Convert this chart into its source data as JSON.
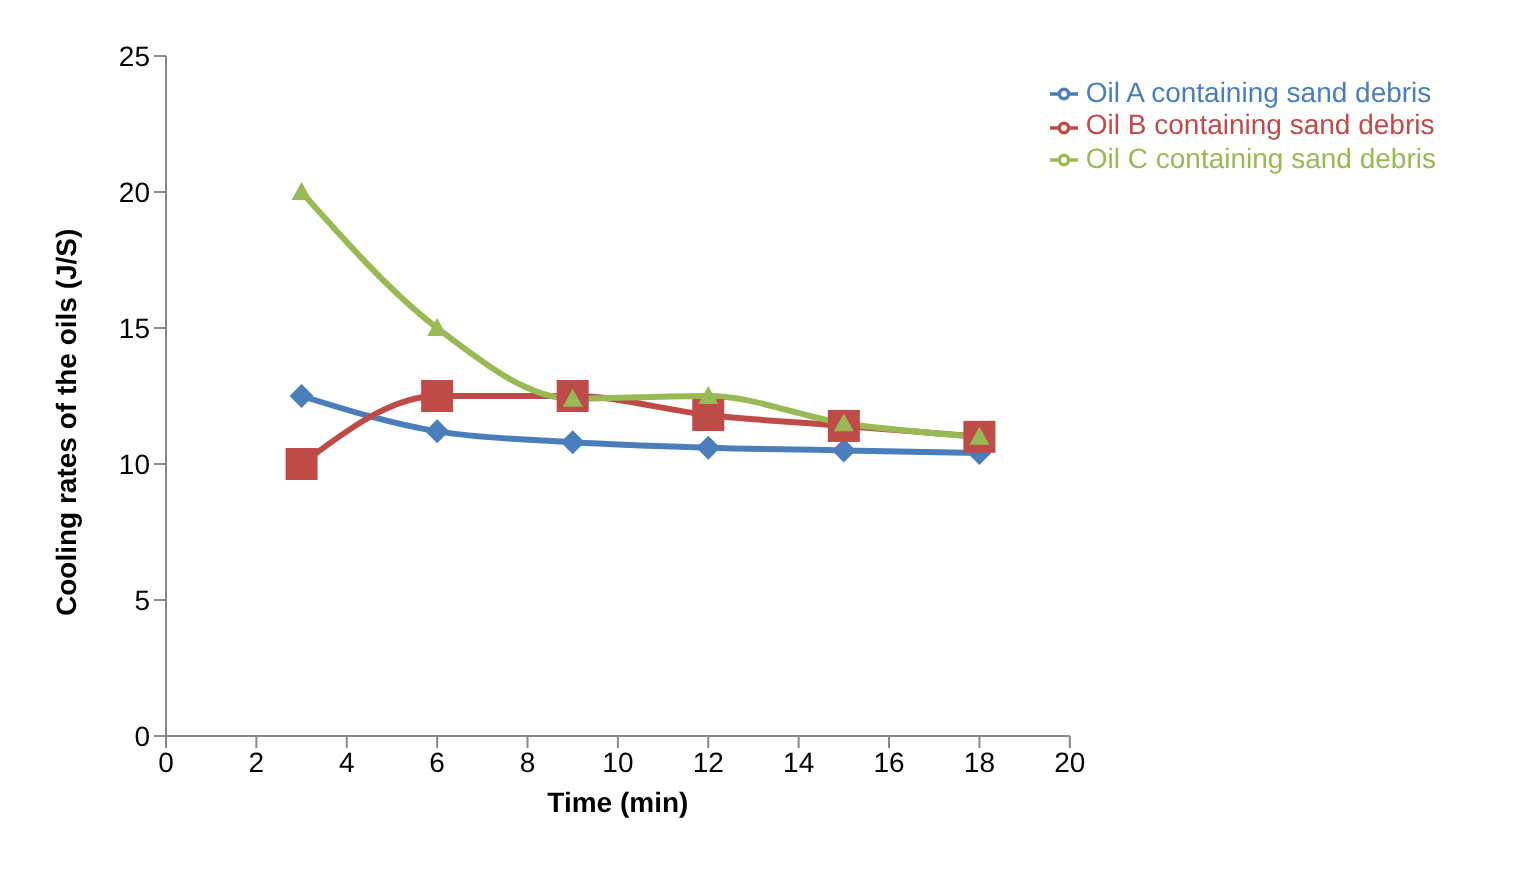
{
  "chart_data": {
    "type": "line",
    "xlabel": "Time (min)",
    "ylabel": "Cooling rates of the oils (J/S)",
    "x": [
      3,
      6,
      9,
      12,
      15,
      18
    ],
    "series": [
      {
        "name": "Oil A containing  sand debris",
        "color": "#4a7ebb",
        "marker": "diamond",
        "values": [
          12.5,
          11.2,
          10.8,
          10.6,
          10.5,
          10.4
        ]
      },
      {
        "name": "Oil B containing sand debris",
        "color": "#be4b48",
        "marker": "square",
        "values": [
          10,
          12.5,
          12.5,
          11.8,
          11.4,
          11.0
        ]
      },
      {
        "name": "Oil C containing sand debris",
        "color": "#98b954",
        "marker": "triangle",
        "values": [
          20,
          15,
          12.4,
          12.5,
          11.5,
          11.0
        ]
      }
    ],
    "xlim": [
      0,
      20
    ],
    "xticks": [
      0,
      2,
      4,
      6,
      8,
      10,
      12,
      14,
      16,
      18,
      20
    ],
    "ylim": [
      0,
      25
    ],
    "yticks": [
      0,
      5,
      10,
      15,
      20,
      25
    ],
    "grid": false,
    "legend": "top right"
  }
}
